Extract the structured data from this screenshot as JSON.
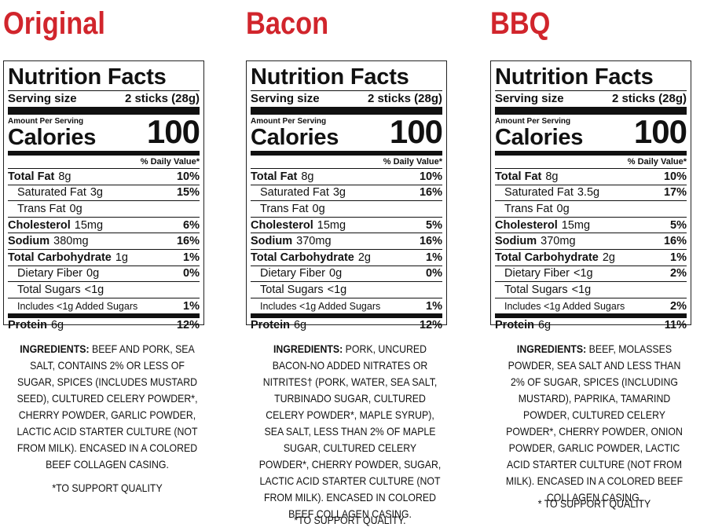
{
  "labels": {
    "nf_title": "Nutrition Facts",
    "serving_size": "Serving size",
    "amount_per_serving": "Amount Per Serving",
    "calories": "Calories",
    "daily_value": "% Daily Value*",
    "total_fat": "Total Fat",
    "saturated_fat": "Saturated Fat",
    "trans_fat": "Trans Fat",
    "cholesterol": "Cholesterol",
    "sodium": "Sodium",
    "total_carb": "Total Carbohydrate",
    "dietary_fiber": "Dietary Fiber",
    "total_sugars": "Total Sugars",
    "added_sugars": "Includes <1g Added Sugars",
    "protein": "Protein",
    "ingredients": "INGREDIENTS:"
  },
  "colors": {
    "title_red": "#d1252c"
  },
  "products": [
    {
      "name": "Original",
      "serving": "2 sticks (28g)",
      "calories": "100",
      "total_fat": "8g",
      "total_fat_dv": "10%",
      "saturated_fat": "3g",
      "saturated_fat_dv": "15%",
      "trans_fat": "0g",
      "cholesterol": "15mg",
      "cholesterol_dv": "6%",
      "sodium": "380mg",
      "sodium_dv": "16%",
      "total_carb": "1g",
      "total_carb_dv": "1%",
      "dietary_fiber": "0g",
      "dietary_fiber_dv": "0%",
      "total_sugars": "<1g",
      "added_sugars_dv": "1%",
      "protein": "6g",
      "protein_dv": "12%",
      "ingredients_text": "BEEF AND PORK, SEA SALT, CONTAINS 2% OR LESS OF SUGAR, SPICES (INCLUDES MUSTARD SEED), CULTURED CELERY POWDER*, CHERRY POWDER, GARLIC POWDER, LACTIC ACID STARTER CULTURE (NOT FROM MILK). ENCASED IN A COLORED BEEF COLLAGEN CASING.",
      "footnote": "*TO SUPPORT QUALITY"
    },
    {
      "name": "Bacon",
      "serving": "2 sticks (28g)",
      "calories": "100",
      "total_fat": "8g",
      "total_fat_dv": "10%",
      "saturated_fat": "3g",
      "saturated_fat_dv": "16%",
      "trans_fat": "0g",
      "cholesterol": "15mg",
      "cholesterol_dv": "5%",
      "sodium": "370mg",
      "sodium_dv": "16%",
      "total_carb": "2g",
      "total_carb_dv": "1%",
      "dietary_fiber": "0g",
      "dietary_fiber_dv": "0%",
      "total_sugars": "<1g",
      "added_sugars_dv": "1%",
      "protein": "6g",
      "protein_dv": "12%",
      "ingredients_text": "PORK, UNCURED BACON-NO ADDED NITRATES OR NITRITES† (PORK, WATER, SEA SALT, TURBINADO SUGAR, CULTURED CELERY POWDER*, MAPLE SYRUP), SEA SALT, LESS THAN 2% OF MAPLE SUGAR, CULTURED CELERY POWDER*, CHERRY POWDER, SUGAR, LACTIC ACID STARTER CULTURE (NOT FROM MILK). ENCASED IN COLORED BEEF COLLAGEN CASING.",
      "footnote": "*TO SUPPORT QUALITY."
    },
    {
      "name": "BBQ",
      "serving": "2 sticks (28g)",
      "calories": "100",
      "total_fat": "8g",
      "total_fat_dv": "10%",
      "saturated_fat": "3.5g",
      "saturated_fat_dv": "17%",
      "trans_fat": "0g",
      "cholesterol": "15mg",
      "cholesterol_dv": "5%",
      "sodium": "370mg",
      "sodium_dv": "16%",
      "total_carb": "2g",
      "total_carb_dv": "1%",
      "dietary_fiber": "<1g",
      "dietary_fiber_dv": "2%",
      "total_sugars": "<1g",
      "added_sugars_dv": "2%",
      "protein": "6g",
      "protein_dv": "11%",
      "ingredients_text": "BEEF, MOLASSES POWDER, SEA SALT AND LESS THAN 2% OF SUGAR, SPICES (INCLUDING MUSTARD), PAPRIKA, TAMARIND POWDER, CULTURED CELERY POWDER*, CHERRY POWDER, ONION POWDER, GARLIC POWDER, LACTIC ACID STARTER CULTURE (NOT FROM MILK). ENCASED IN A COLORED BEEF COLLAGEN CASING.",
      "footnote": "* TO SUPPORT QUALITY"
    }
  ]
}
